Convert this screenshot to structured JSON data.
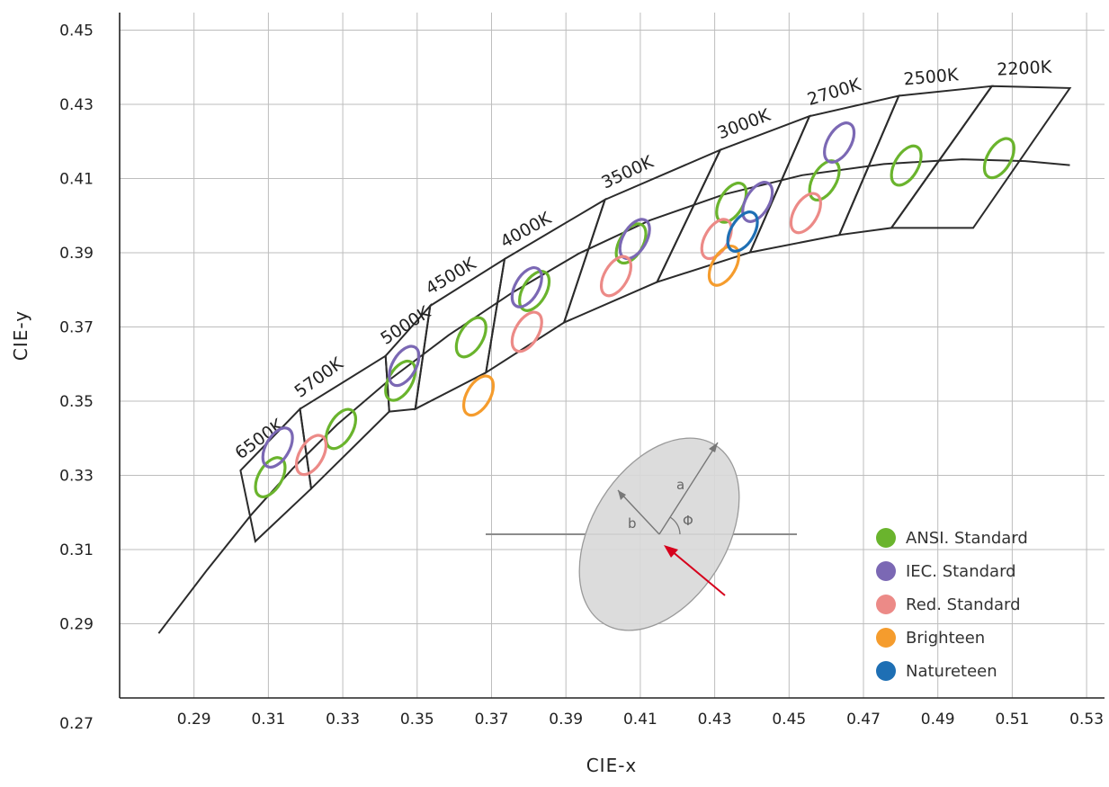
{
  "chart_data": {
    "type": "scatter",
    "xlabel": "CIE-x",
    "ylabel": "CIE-y",
    "xlim": [
      0.27,
      0.535
    ],
    "ylim": [
      0.27,
      0.455
    ],
    "x_ticks": [
      "0.29",
      "0.31",
      "0.33",
      "0.35",
      "0.37",
      "0.39",
      "0.41",
      "0.43",
      "0.45",
      "0.47",
      "0.49",
      "0.51",
      "0.53"
    ],
    "y_ticks": [
      "0.45",
      "0.43",
      "0.41",
      "0.39",
      "0.37",
      "0.35",
      "0.33",
      "0.31",
      "0.29",
      "0.27"
    ],
    "grid": true,
    "cct_labels": [
      "6500K",
      "5700K",
      "5000K",
      "4500K",
      "4000K",
      "3500K",
      "3000K",
      "2700K",
      "2500K",
      "2200K"
    ],
    "planckian_locus": [
      [
        0.2805,
        0.2874
      ],
      [
        0.2935,
        0.3045
      ],
      [
        0.3055,
        0.3195
      ],
      [
        0.3165,
        0.3318
      ],
      [
        0.3285,
        0.3437
      ],
      [
        0.3425,
        0.3557
      ],
      [
        0.3585,
        0.3678
      ],
      [
        0.3755,
        0.3792
      ],
      [
        0.3935,
        0.3898
      ],
      [
        0.4125,
        0.3987
      ],
      [
        0.4325,
        0.4057
      ],
      [
        0.4535,
        0.4109
      ],
      [
        0.4755,
        0.4139
      ],
      [
        0.4965,
        0.4152
      ],
      [
        0.5135,
        0.4147
      ],
      [
        0.5255,
        0.4136
      ]
    ],
    "quadrangles": [
      {
        "label": "6500K",
        "points": [
          [
            0.3025,
            0.3313
          ],
          [
            0.3185,
            0.3479
          ],
          [
            0.3215,
            0.3264
          ],
          [
            0.3065,
            0.3122
          ]
        ]
      },
      {
        "label": "5700K",
        "points": [
          [
            0.3185,
            0.3479
          ],
          [
            0.3415,
            0.3622
          ],
          [
            0.3425,
            0.3472
          ],
          [
            0.3215,
            0.3264
          ]
        ]
      },
      {
        "label": "5000K",
        "points": [
          [
            0.3415,
            0.3622
          ],
          [
            0.3535,
            0.3757
          ],
          [
            0.3495,
            0.3479
          ],
          [
            0.3425,
            0.3472
          ]
        ]
      },
      {
        "label": "4500K",
        "points": [
          [
            0.3535,
            0.3757
          ],
          [
            0.3735,
            0.3883
          ],
          [
            0.3685,
            0.3577
          ],
          [
            0.3495,
            0.3479
          ]
        ]
      },
      {
        "label": "4000K",
        "points": [
          [
            0.3735,
            0.3883
          ],
          [
            0.4005,
            0.4043
          ],
          [
            0.3895,
            0.3712
          ],
          [
            0.3685,
            0.3577
          ]
        ]
      },
      {
        "label": "3500K",
        "points": [
          [
            0.4005,
            0.4043
          ],
          [
            0.4315,
            0.4177
          ],
          [
            0.4145,
            0.3821
          ],
          [
            0.3895,
            0.3712
          ]
        ]
      },
      {
        "label": "3000K",
        "points": [
          [
            0.4315,
            0.4177
          ],
          [
            0.4555,
            0.4268
          ],
          [
            0.4395,
            0.3901
          ],
          [
            0.4145,
            0.3821
          ]
        ]
      },
      {
        "label": "2700K",
        "points": [
          [
            0.4555,
            0.4268
          ],
          [
            0.4795,
            0.4323
          ],
          [
            0.4635,
            0.3948
          ],
          [
            0.4395,
            0.3901
          ]
        ]
      },
      {
        "label": "2500K",
        "points": [
          [
            0.4795,
            0.4323
          ],
          [
            0.5045,
            0.4349
          ],
          [
            0.4775,
            0.3967
          ],
          [
            0.4635,
            0.3948
          ]
        ]
      },
      {
        "label": "2200K",
        "points": [
          [
            0.5045,
            0.4349
          ],
          [
            0.5255,
            0.4344
          ],
          [
            0.4995,
            0.3967
          ],
          [
            0.4775,
            0.3967
          ]
        ]
      }
    ],
    "series": [
      {
        "name": "ANSI. Standard",
        "color": "#6ab42d",
        "ellipses": [
          [
            0.3105,
            0.3295
          ],
          [
            0.3295,
            0.3425
          ],
          [
            0.3455,
            0.3555
          ],
          [
            0.3645,
            0.3672
          ],
          [
            0.3815,
            0.3797
          ],
          [
            0.4075,
            0.3925
          ],
          [
            0.4345,
            0.4035
          ],
          [
            0.4595,
            0.4095
          ],
          [
            0.4815,
            0.4135
          ],
          [
            0.5065,
            0.4155
          ]
        ]
      },
      {
        "name": "IEC. Standard",
        "color": "#7b68b4",
        "ellipses": [
          [
            0.3125,
            0.3375
          ],
          [
            0.3465,
            0.3595
          ],
          [
            0.3795,
            0.3807
          ],
          [
            0.4085,
            0.3937
          ],
          [
            0.4415,
            0.4037
          ],
          [
            0.4635,
            0.4197
          ]
        ]
      },
      {
        "name": "Red. Standard",
        "color": "#ec8a87",
        "ellipses": [
          [
            0.3215,
            0.3355
          ],
          [
            0.3795,
            0.3687
          ],
          [
            0.4035,
            0.3837
          ],
          [
            0.4305,
            0.3937
          ],
          [
            0.4545,
            0.4007
          ]
        ]
      },
      {
        "name": "Brighteen",
        "color": "#f59c2d",
        "ellipses": [
          [
            0.3665,
            0.3515
          ],
          [
            0.4325,
            0.3865
          ]
        ]
      },
      {
        "name": "Natureteen",
        "color": "#1e6fb4",
        "ellipses": [
          [
            0.4375,
            0.3957
          ]
        ]
      }
    ],
    "diagram_labels": {
      "a": "a",
      "b": "b",
      "phi": "Φ"
    },
    "legend_position": "bottom-right"
  }
}
